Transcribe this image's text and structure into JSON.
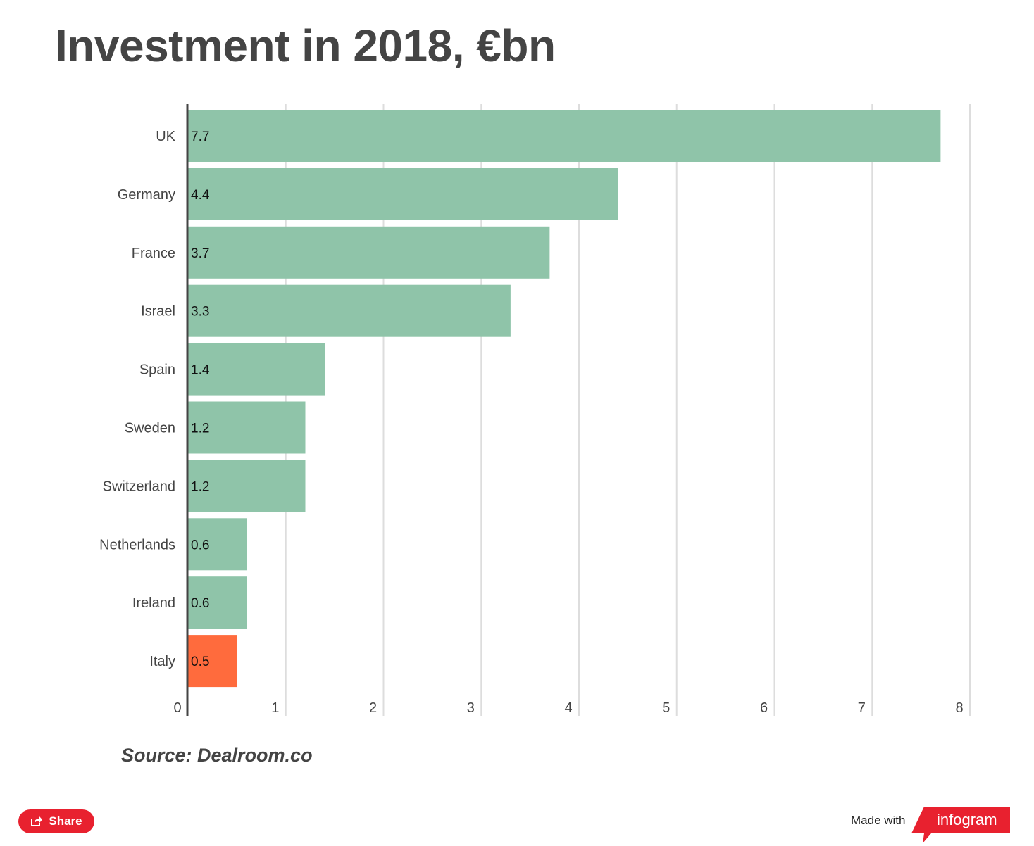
{
  "title": "Investment in 2018, €bn",
  "chart_data": {
    "type": "bar",
    "orientation": "horizontal",
    "categories": [
      "UK",
      "Germany",
      "France",
      "Israel",
      "Spain",
      "Sweden",
      "Switzerland",
      "Netherlands",
      "Ireland",
      "Italy"
    ],
    "values": [
      7.7,
      4.4,
      3.7,
      3.3,
      1.4,
      1.2,
      1.2,
      0.6,
      0.6,
      0.5
    ],
    "data_labels": [
      "7.7",
      "4.4",
      "3.7",
      "3.3",
      "1.4",
      "1.2",
      "1.2",
      "0.6",
      "0.6",
      "0.5"
    ],
    "xlim": [
      0,
      8
    ],
    "x_ticks": [
      "0",
      "1",
      "2",
      "3",
      "4",
      "5",
      "6",
      "7",
      "8"
    ],
    "grid": true,
    "colors": {
      "default": "#8fc4a9",
      "highlight": "#ff6b3d",
      "highlight_category": "Italy"
    }
  },
  "source": "Source: Dealroom.co",
  "footer": {
    "share_label": "Share",
    "made_with": "Made with",
    "brand": "infogram",
    "share_icon": "share-icon",
    "brand_color": "#e8212f"
  }
}
